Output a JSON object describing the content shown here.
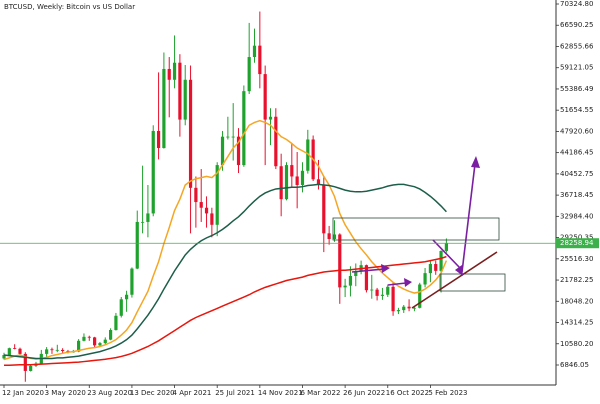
{
  "chart_data": {
    "type": "candlestick",
    "title": "BTCUSD, Weekly: Bitcoin vs US Dollar",
    "categories": [
      "12 Jan 2020",
      null,
      null,
      null,
      null,
      null,
      null,
      null,
      "3 May 2020",
      null,
      null,
      null,
      null,
      null,
      null,
      null,
      "23 Aug 2020",
      null,
      null,
      null,
      null,
      null,
      null,
      null,
      "13 Dec 2020",
      null,
      null,
      null,
      null,
      null,
      null,
      null,
      "4 Apr 2021",
      null,
      null,
      null,
      null,
      null,
      null,
      null,
      "25 Jul 2021",
      null,
      null,
      null,
      null,
      null,
      null,
      null,
      "14 Nov 2021",
      null,
      null,
      null,
      null,
      null,
      null,
      null,
      "6 Mar 2022",
      null,
      null,
      null,
      null,
      null,
      null,
      null,
      "26 Jun 2022",
      null,
      null,
      null,
      null,
      null,
      null,
      null,
      "16 Oct 2022",
      null,
      null,
      null,
      null,
      null,
      null,
      null,
      "5 Feb 2023",
      null,
      null,
      null
    ],
    "open": [
      8000,
      8600,
      9800,
      9700,
      8800,
      5800,
      6700,
      7100,
      8800,
      9600,
      9500,
      9500,
      9300,
      9200,
      9200,
      11100,
      11800,
      11700,
      10300,
      10700,
      11300,
      13000,
      15500,
      18400,
      19200,
      23800,
      32000,
      32000,
      33500,
      48000,
      45000,
      58900,
      57000,
      60000,
      50000,
      57000,
      38000,
      35500,
      34500,
      33500,
      31500,
      42000,
      47000,
      47000,
      47000,
      42000,
      55000,
      61000,
      63000,
      58000,
      50000,
      50500,
      41800,
      36000,
      42000,
      40000,
      38500,
      41000,
      46500,
      39500,
      38500,
      30000,
      29000,
      29800,
      20500,
      20800,
      22500,
      23300,
      24400,
      20000,
      20100,
      19000,
      19200,
      20600,
      16300,
      16500,
      17100,
      16800,
      16900,
      21000,
      23000,
      24600,
      23400,
      26900
    ],
    "high": [
      9000,
      9900,
      10500,
      9900,
      9100,
      7000,
      7400,
      9500,
      10000,
      9900,
      10400,
      9800,
      9500,
      9500,
      11400,
      12400,
      12000,
      11800,
      10900,
      11700,
      13300,
      16000,
      18800,
      19900,
      24000,
      34000,
      41900,
      38500,
      49000,
      58300,
      61800,
      61000,
      64800,
      61500,
      59600,
      59500,
      40000,
      41300,
      36500,
      34500,
      42500,
      48000,
      50500,
      52900,
      48500,
      56000,
      67000,
      66000,
      69000,
      59500,
      52000,
      52000,
      44000,
      42500,
      45800,
      44300,
      42500,
      48200,
      47200,
      42900,
      40000,
      31300,
      32300,
      30000,
      22000,
      24200,
      24700,
      25200,
      24500,
      22700,
      20400,
      20400,
      21000,
      21400,
      16900,
      17400,
      18400,
      17100,
      21300,
      23900,
      25300,
      25200,
      27000,
      29100
    ],
    "low": [
      7800,
      8500,
      9600,
      8500,
      3900,
      5700,
      6500,
      7000,
      8100,
      8800,
      9100,
      8900,
      8900,
      9000,
      9100,
      11000,
      11100,
      9900,
      10100,
      10500,
      11200,
      12900,
      15200,
      16200,
      18700,
      23700,
      30000,
      29300,
      33000,
      43000,
      44900,
      50400,
      55500,
      47000,
      49000,
      30000,
      31000,
      32000,
      31000,
      29300,
      29500,
      41000,
      46500,
      42800,
      40600,
      41700,
      54500,
      60000,
      55500,
      42000,
      45500,
      41300,
      33000,
      35800,
      38000,
      34400,
      37200,
      40500,
      39200,
      37700,
      26700,
      28000,
      28500,
      17600,
      18800,
      18900,
      20700,
      22800,
      19600,
      18500,
      18200,
      18300,
      18800,
      15500,
      15800,
      16000,
      16300,
      16300,
      16800,
      20500,
      21400,
      22700,
      19600,
      26600
    ],
    "close": [
      8600,
      9800,
      9700,
      8800,
      5800,
      6700,
      7100,
      8800,
      9600,
      9500,
      9500,
      9300,
      9200,
      9200,
      11100,
      11800,
      11700,
      10300,
      10700,
      11300,
      13000,
      15500,
      18400,
      19200,
      23800,
      32000,
      32000,
      33500,
      48000,
      45000,
      58900,
      57000,
      60000,
      50000,
      57000,
      38000,
      35500,
      34500,
      33500,
      31500,
      42000,
      47000,
      47000,
      47000,
      42000,
      55000,
      61000,
      63000,
      58000,
      50000,
      50500,
      41800,
      36000,
      42000,
      40000,
      38500,
      41000,
      46500,
      39500,
      38500,
      30000,
      29000,
      29800,
      20500,
      20800,
      22500,
      23300,
      24400,
      20000,
      20100,
      19000,
      19200,
      20600,
      16300,
      16500,
      17100,
      16800,
      16900,
      21000,
      23000,
      24600,
      23400,
      26900,
      28200
    ],
    "up_color": "#1fa12d",
    "down_color": "#e8112d",
    "series": [
      {
        "color": "#f5a623",
        "values": [
          7800,
          8100,
          8400,
          8600,
          8300,
          8000,
          7900,
          8000,
          8200,
          8500,
          8700,
          8900,
          9100,
          9200,
          9400,
          9600,
          9800,
          9900,
          10100,
          10400,
          10800,
          11300,
          12100,
          13000,
          14300,
          16200,
          18000,
          19800,
          22500,
          25000,
          28200,
          31000,
          34000,
          36000,
          38500,
          39200,
          39600,
          39800,
          40000,
          39800,
          40600,
          42000,
          43500,
          45000,
          46000,
          47500,
          49000,
          49500,
          49800,
          49500,
          49000,
          48000,
          47000,
          46500,
          45800,
          45000,
          44500,
          44000,
          43000,
          41800,
          40000,
          38500,
          36500,
          33500,
          31500,
          30000,
          28500,
          27300,
          26200,
          25000,
          24000,
          23000,
          22200,
          21400,
          20700,
          20200,
          19800,
          19500,
          19700,
          20200,
          20900,
          21800,
          23000,
          25200
        ]
      },
      {
        "color": "#1d5e4a",
        "values": [
          8600,
          8500,
          8400,
          8300,
          8200,
          8100,
          8000,
          8000,
          8000,
          8000,
          8100,
          8100,
          8200,
          8300,
          8400,
          8600,
          8800,
          9000,
          9200,
          9500,
          9800,
          10200,
          10700,
          11300,
          12100,
          13200,
          14400,
          15600,
          17000,
          18500,
          20200,
          21800,
          23400,
          24800,
          26200,
          27200,
          28000,
          28700,
          29200,
          29600,
          30100,
          30700,
          31400,
          32200,
          32900,
          33800,
          34800,
          35700,
          36500,
          37100,
          37500,
          37800,
          37900,
          38000,
          38100,
          38100,
          38200,
          38400,
          38500,
          38600,
          38500,
          38400,
          38200,
          37900,
          37600,
          37400,
          37300,
          37300,
          37400,
          37600,
          37800,
          38000,
          38300,
          38500,
          38600,
          38600,
          38400,
          38200,
          37800,
          37200,
          36500,
          35700,
          34800,
          33800
        ]
      },
      {
        "color": "#e8160c",
        "values": [
          6800,
          6800,
          6850,
          6900,
          6900,
          6900,
          6950,
          7000,
          7050,
          7100,
          7150,
          7200,
          7250,
          7300,
          7350,
          7450,
          7550,
          7650,
          7750,
          7850,
          8000,
          8150,
          8350,
          8600,
          8900,
          9300,
          9700,
          10100,
          10600,
          11100,
          11700,
          12300,
          12900,
          13500,
          14100,
          14700,
          15200,
          15600,
          16000,
          16400,
          16800,
          17200,
          17600,
          18000,
          18400,
          18800,
          19200,
          19700,
          20100,
          20500,
          20800,
          21100,
          21400,
          21700,
          21900,
          22100,
          22300,
          22600,
          22800,
          23000,
          23200,
          23300,
          23400,
          23500,
          23500,
          23600,
          23700,
          23800,
          23900,
          24000,
          24100,
          24200,
          24300,
          24400,
          24500,
          24600,
          24700,
          24800,
          24900,
          25000,
          25200,
          25400,
          25600,
          25900
        ]
      }
    ],
    "last_price": 28258.94,
    "last_price_color": "#3cb04a",
    "ylim": [
      3329,
      71028
    ],
    "yticks": [
      {
        "value": 70324.8,
        "label": "70324.80"
      },
      66590.25,
      62855.66,
      59121.05,
      55386.49,
      51654.55,
      {
        "value": 47920.6,
        "label": "47920.60"
      },
      44186.45,
      40452.75,
      36718.45,
      {
        "value": 32984.4,
        "label": "32984.40"
      },
      29250.35,
      {
        "value": 25516.3,
        "label": "25516.30"
      },
      21782.25,
      {
        "value": 18048.2,
        "label": "18048.20"
      },
      14314.25,
      {
        "value": 10580.2,
        "label": "10580.20"
      },
      6846.05
    ]
  }
}
